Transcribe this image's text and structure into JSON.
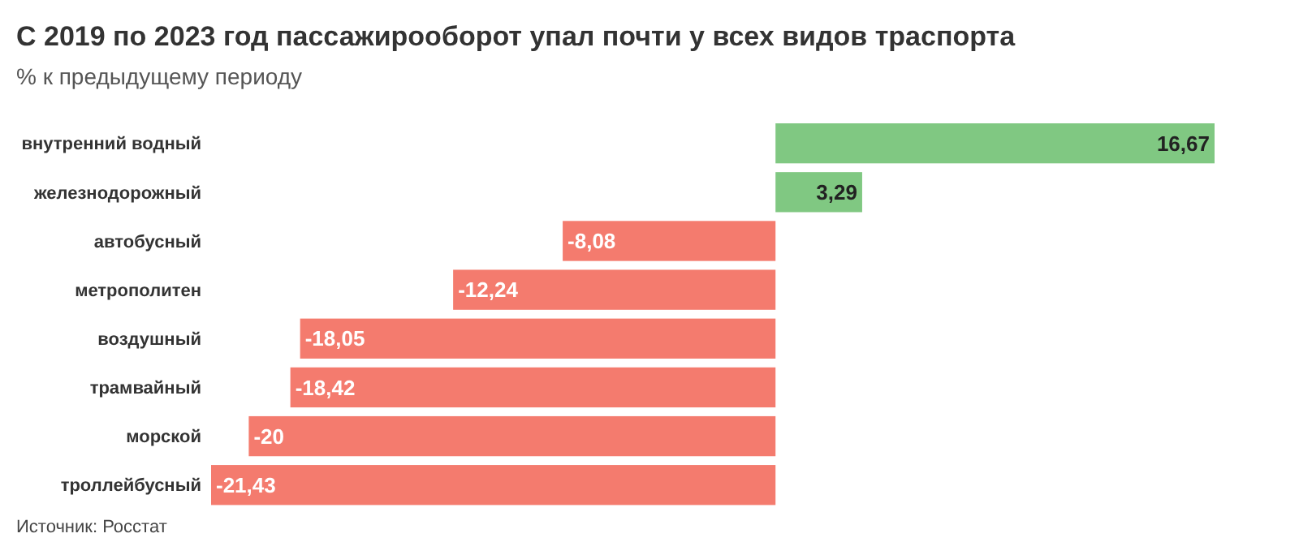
{
  "chart_data": {
    "type": "bar",
    "orientation": "horizontal",
    "title": "С 2019 по 2023 год пассажирооборот упал почти у всех видов траспорта",
    "subtitle": "% к предыдущему периоду",
    "categories": [
      "внутренний водный",
      "железнодорожный",
      "автобусный",
      "метрополитен",
      "воздушный",
      "трамвайный",
      "морской",
      "троллейбусный"
    ],
    "values": [
      16.67,
      3.29,
      -8.08,
      -12.24,
      -18.05,
      -18.42,
      -20,
      -21.43
    ],
    "colors": [
      "#80c882",
      "#80c882",
      "#f47b6e",
      "#f47b6e",
      "#f47b6e",
      "#f47b6e",
      "#f47b6e",
      "#f47b6e"
    ],
    "value_labels": [
      "16,67",
      "3,29",
      "-8,08",
      "-12,24",
      "-18,05",
      "-18,42",
      "-20",
      "-21,43"
    ],
    "annotations": [
      "Источник: Росстат"
    ]
  }
}
